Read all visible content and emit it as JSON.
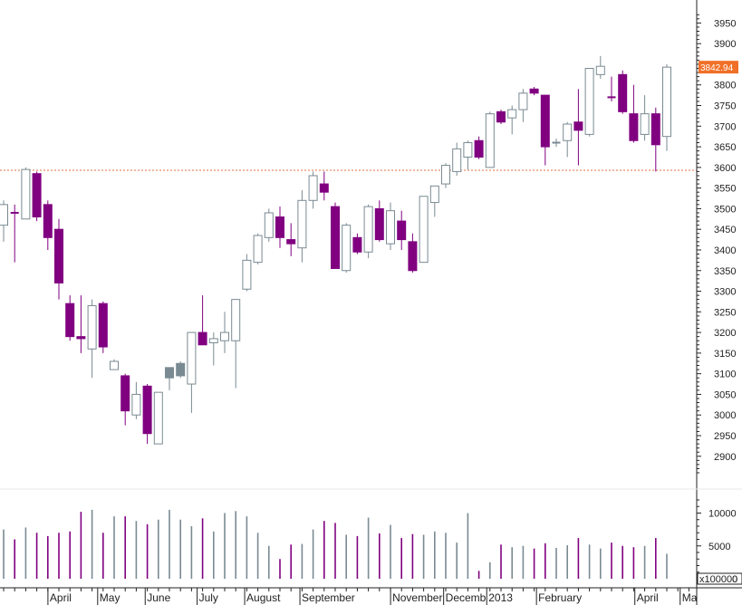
{
  "chart_data": {
    "type": "candlestick",
    "title": "",
    "price_axis": {
      "ylim": [
        2860,
        3975
      ],
      "ticks": [
        2900,
        2950,
        3000,
        3050,
        3100,
        3150,
        3200,
        3250,
        3300,
        3350,
        3400,
        3450,
        3500,
        3550,
        3600,
        3650,
        3700,
        3750,
        3800,
        3850,
        3900,
        3950
      ],
      "tick_labels": [
        "2900",
        "2950",
        "3000",
        "3050",
        "3100",
        "3150",
        "3200",
        "3250",
        "3300",
        "3350",
        "3400",
        "3450",
        "3500",
        "3550",
        "3600",
        "3650",
        "3700",
        "3750",
        "3800",
        "3850",
        "3900",
        "3950"
      ]
    },
    "volume_axis": {
      "ylim": [
        0,
        12000
      ],
      "ticks": [
        0,
        5000,
        10000
      ],
      "tick_labels": [
        "0",
        "5000",
        "10000"
      ],
      "unit_label": "x100000"
    },
    "last_price_label": "3842.94",
    "reference_line": {
      "value": 3593
    },
    "month_labels": [
      {
        "label": "April",
        "week": 4.5
      },
      {
        "label": "May",
        "week": 9
      },
      {
        "label": "June",
        "week": 13.3
      },
      {
        "label": "July",
        "week": 18
      },
      {
        "label": "August",
        "week": 22.3
      },
      {
        "label": "September",
        "week": 27.3
      },
      {
        "label": "November",
        "week": 35.5
      },
      {
        "label": "Decemb",
        "week": 40.3
      },
      {
        "label": "2013",
        "week": 44.2
      },
      {
        "label": "February",
        "week": 48.7
      },
      {
        "label": "April",
        "week": 57.6
      },
      {
        "label": "Ma",
        "week": 61.7
      }
    ],
    "candles": [
      {
        "o": 3460,
        "h": 3520,
        "l": 3420,
        "c": 3510,
        "v": 7500,
        "color": "up"
      },
      {
        "o": 3490,
        "h": 3510,
        "l": 3370,
        "c": 3490,
        "v": 6000,
        "color": "down"
      },
      {
        "o": 3475,
        "h": 3600,
        "l": 3475,
        "c": 3595,
        "v": 7800,
        "color": "up"
      },
      {
        "o": 3585,
        "h": 3590,
        "l": 3470,
        "c": 3480,
        "v": 7000,
        "color": "down"
      },
      {
        "o": 3510,
        "h": 3520,
        "l": 3400,
        "c": 3430,
        "v": 6500,
        "color": "down"
      },
      {
        "o": 3450,
        "h": 3475,
        "l": 3280,
        "c": 3320,
        "v": 7000,
        "color": "down"
      },
      {
        "o": 3270,
        "h": 3290,
        "l": 3180,
        "c": 3190,
        "v": 7200,
        "color": "down"
      },
      {
        "o": 3190,
        "h": 3290,
        "l": 3150,
        "c": 3185,
        "v": 10200,
        "color": "down"
      },
      {
        "o": 3160,
        "h": 3280,
        "l": 3090,
        "c": 3265,
        "v": 10500,
        "color": "up"
      },
      {
        "o": 3270,
        "h": 3275,
        "l": 3150,
        "c": 3165,
        "v": 7000,
        "color": "down"
      },
      {
        "o": 3130,
        "h": 3135,
        "l": 3110,
        "c": 3110,
        "v": 9500,
        "color": "up"
      },
      {
        "o": 3095,
        "h": 3100,
        "l": 2975,
        "c": 3010,
        "v": 9500,
        "color": "down"
      },
      {
        "o": 3000,
        "h": 3080,
        "l": 2990,
        "c": 3050,
        "v": 8800,
        "color": "up"
      },
      {
        "o": 3070,
        "h": 3075,
        "l": 2930,
        "c": 2955,
        "v": 8300,
        "color": "down"
      },
      {
        "o": 2930,
        "h": 3050,
        "l": 2930,
        "c": 3055,
        "v": 9000,
        "color": "up"
      },
      {
        "o": 3090,
        "h": 3115,
        "l": 3060,
        "c": 3115,
        "v": 10500,
        "color": "flat"
      },
      {
        "o": 3095,
        "h": 3130,
        "l": 3090,
        "c": 3125,
        "v": 9000,
        "color": "flat"
      },
      {
        "o": 3075,
        "h": 3200,
        "l": 3005,
        "c": 3200,
        "v": 8000,
        "color": "up"
      },
      {
        "o": 3200,
        "h": 3290,
        "l": 3170,
        "c": 3170,
        "v": 9200,
        "color": "down"
      },
      {
        "o": 3175,
        "h": 3200,
        "l": 3120,
        "c": 3185,
        "v": 7200,
        "color": "up"
      },
      {
        "o": 3180,
        "h": 3250,
        "l": 3150,
        "c": 3200,
        "v": 10000,
        "color": "up"
      },
      {
        "o": 3180,
        "h": 3280,
        "l": 3065,
        "c": 3280,
        "v": 10300,
        "color": "up"
      },
      {
        "o": 3305,
        "h": 3390,
        "l": 3300,
        "c": 3375,
        "v": 9500,
        "color": "up"
      },
      {
        "o": 3370,
        "h": 3440,
        "l": 3365,
        "c": 3435,
        "v": 7000,
        "color": "up"
      },
      {
        "o": 3430,
        "h": 3500,
        "l": 3420,
        "c": 3490,
        "v": 5000,
        "color": "up"
      },
      {
        "o": 3480,
        "h": 3505,
        "l": 3405,
        "c": 3430,
        "v": 3000,
        "color": "down"
      },
      {
        "o": 3425,
        "h": 3465,
        "l": 3385,
        "c": 3415,
        "v": 5200,
        "color": "down"
      },
      {
        "o": 3405,
        "h": 3545,
        "l": 3370,
        "c": 3520,
        "v": 5300,
        "color": "up"
      },
      {
        "o": 3520,
        "h": 3590,
        "l": 3500,
        "c": 3580,
        "v": 7500,
        "color": "up"
      },
      {
        "o": 3560,
        "h": 3590,
        "l": 3520,
        "c": 3540,
        "v": 8800,
        "color": "down"
      },
      {
        "o": 3505,
        "h": 3515,
        "l": 3355,
        "c": 3355,
        "v": 8500,
        "color": "down"
      },
      {
        "o": 3350,
        "h": 3465,
        "l": 3345,
        "c": 3460,
        "v": 6700,
        "color": "up"
      },
      {
        "o": 3430,
        "h": 3440,
        "l": 3390,
        "c": 3395,
        "v": 6500,
        "color": "down"
      },
      {
        "o": 3395,
        "h": 3510,
        "l": 3380,
        "c": 3505,
        "v": 9300,
        "color": "up"
      },
      {
        "o": 3500,
        "h": 3520,
        "l": 3420,
        "c": 3425,
        "v": 6900,
        "color": "down"
      },
      {
        "o": 3415,
        "h": 3515,
        "l": 3400,
        "c": 3495,
        "v": 8200,
        "color": "up"
      },
      {
        "o": 3470,
        "h": 3495,
        "l": 3400,
        "c": 3425,
        "v": 6200,
        "color": "down"
      },
      {
        "o": 3420,
        "h": 3440,
        "l": 3345,
        "c": 3350,
        "v": 6800,
        "color": "down"
      },
      {
        "o": 3370,
        "h": 3530,
        "l": 3370,
        "c": 3530,
        "v": 6700,
        "color": "up"
      },
      {
        "o": 3515,
        "h": 3555,
        "l": 3480,
        "c": 3555,
        "v": 7200,
        "color": "up"
      },
      {
        "o": 3560,
        "h": 3610,
        "l": 3550,
        "c": 3605,
        "v": 7000,
        "color": "up"
      },
      {
        "o": 3590,
        "h": 3660,
        "l": 3580,
        "c": 3645,
        "v": 5500,
        "color": "up"
      },
      {
        "o": 3625,
        "h": 3665,
        "l": 3595,
        "c": 3660,
        "v": 10000,
        "color": "up"
      },
      {
        "o": 3665,
        "h": 3675,
        "l": 3620,
        "c": 3625,
        "v": 1200,
        "color": "down"
      },
      {
        "o": 3600,
        "h": 3735,
        "l": 3600,
        "c": 3730,
        "v": 2500,
        "color": "up"
      },
      {
        "o": 3735,
        "h": 3740,
        "l": 3705,
        "c": 3710,
        "v": 5200,
        "color": "down"
      },
      {
        "o": 3720,
        "h": 3750,
        "l": 3680,
        "c": 3740,
        "v": 4800,
        "color": "up"
      },
      {
        "o": 3740,
        "h": 3790,
        "l": 3710,
        "c": 3780,
        "v": 5000,
        "color": "up"
      },
      {
        "o": 3790,
        "h": 3795,
        "l": 3775,
        "c": 3780,
        "v": 4600,
        "color": "down"
      },
      {
        "o": 3775,
        "h": 3775,
        "l": 3605,
        "c": 3650,
        "v": 5400,
        "color": "down"
      },
      {
        "o": 3660,
        "h": 3670,
        "l": 3650,
        "c": 3660,
        "v": 4700,
        "color": "up"
      },
      {
        "o": 3665,
        "h": 3710,
        "l": 3625,
        "c": 3705,
        "v": 5100,
        "color": "up"
      },
      {
        "o": 3710,
        "h": 3790,
        "l": 3605,
        "c": 3690,
        "v": 6200,
        "color": "down"
      },
      {
        "o": 3680,
        "h": 3840,
        "l": 3675,
        "c": 3840,
        "v": 5200,
        "color": "up"
      },
      {
        "o": 3825,
        "h": 3870,
        "l": 3815,
        "c": 3845,
        "v": 4600,
        "color": "up"
      },
      {
        "o": 3770,
        "h": 3820,
        "l": 3760,
        "c": 3770,
        "v": 5500,
        "color": "down"
      },
      {
        "o": 3825,
        "h": 3835,
        "l": 3730,
        "c": 3735,
        "v": 5000,
        "color": "down"
      },
      {
        "o": 3730,
        "h": 3800,
        "l": 3660,
        "c": 3665,
        "v": 4800,
        "color": "down"
      },
      {
        "o": 3680,
        "h": 3775,
        "l": 3665,
        "c": 3730,
        "v": 5000,
        "color": "up"
      },
      {
        "o": 3730,
        "h": 3745,
        "l": 3590,
        "c": 3655,
        "v": 6200,
        "color": "down"
      },
      {
        "o": 3675,
        "h": 3850,
        "l": 3640,
        "c": 3843,
        "v": 3800,
        "color": "up"
      }
    ],
    "colors": {
      "up": "#7a8a92",
      "down": "#800080",
      "flat": "#7a8a92",
      "reference_line": "#e07040",
      "last_price_bg": "#f07028",
      "grid": "#cccccc",
      "axis": "#222222"
    }
  }
}
